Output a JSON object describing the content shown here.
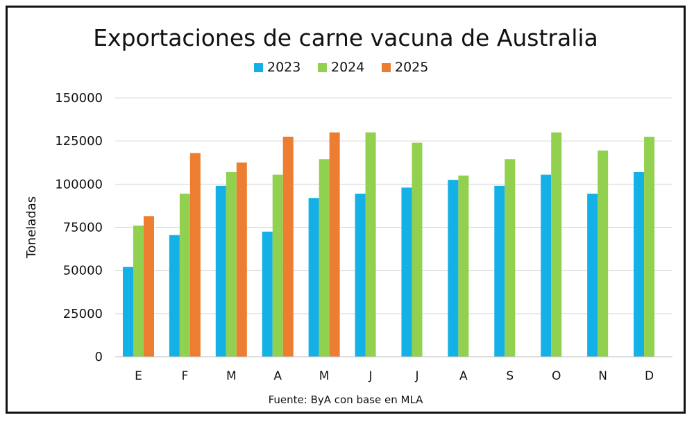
{
  "chart_data": {
    "type": "bar",
    "title": "Exportaciones de carne vacuna de Australia",
    "ylabel": "Toneladas",
    "xlabel": "",
    "source": "Fuente: ByA con base en MLA",
    "categories": [
      "E",
      "F",
      "M",
      "A",
      "M",
      "J",
      "J",
      "A",
      "S",
      "O",
      "N",
      "D"
    ],
    "series": [
      {
        "name": "2023",
        "color": "#14b1e7",
        "values": [
          52000,
          70500,
          99000,
          72500,
          92000,
          94500,
          98000,
          102500,
          99000,
          105500,
          94500,
          107000
        ]
      },
      {
        "name": "2024",
        "color": "#92d050",
        "values": [
          76000,
          94500,
          107000,
          105500,
          114500,
          130000,
          124000,
          105000,
          114500,
          130000,
          119500,
          127500
        ]
      },
      {
        "name": "2025",
        "color": "#ed7d31",
        "values": [
          81500,
          118000,
          112500,
          127500,
          130000,
          null,
          null,
          null,
          null,
          null,
          null,
          null
        ]
      }
    ],
    "ylim": [
      0,
      150000
    ],
    "yticks": [
      0,
      25000,
      50000,
      75000,
      100000,
      125000,
      150000
    ],
    "grid": true,
    "legend_position": "top-center"
  }
}
